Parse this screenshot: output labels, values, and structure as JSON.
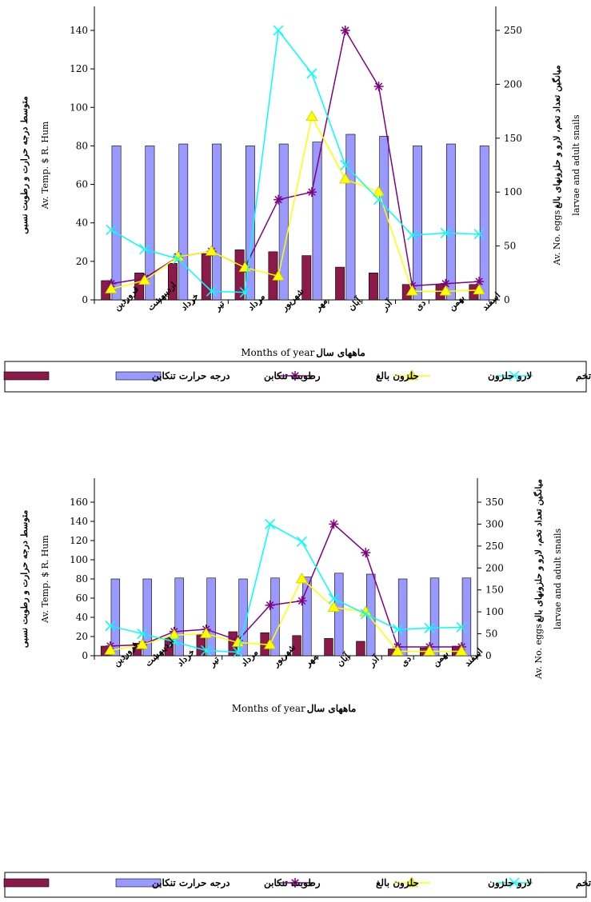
{
  "chart_data": [
    {
      "type": "bar",
      "categories": [
        "فروردین",
        "اردیبهشت",
        "خرداد",
        "تیر",
        "مرداد",
        "شهریور",
        "مهر",
        "آبان",
        "آذر",
        "دی",
        "بهمن",
        "اسفند"
      ],
      "ylabel_left_fa": "متوسط درجه حرارت و رطوبت نسبی",
      "ylabel_left_en": "Av. Temp. $ R. Hum",
      "ylabel_right_fa": "میانگین تعداد تخم، لارو و حلزونهای بالغ",
      "ylabel_right_en_1": "Av. No. eggs",
      "ylabel_right_en_2": "larvae and adult snails",
      "xlabel_en": "Months of year",
      "xlabel_fa": "ماههای سال",
      "ylim_left": [
        0,
        140
      ],
      "yticks_left": [
        0,
        20,
        40,
        60,
        80,
        100,
        120,
        140
      ],
      "ylim_right": [
        0,
        250
      ],
      "yticks_right": [
        0,
        50,
        100,
        150,
        200,
        250
      ],
      "grid": false,
      "legend_position": "bottom",
      "series": [
        {
          "name": "درجه حرارت تنکابن",
          "kind": "bar",
          "axis": "left",
          "color": "#8b1a4a",
          "values": [
            10,
            14,
            19,
            24,
            26,
            25,
            23,
            17,
            14,
            8,
            8,
            8
          ]
        },
        {
          "name": "رطوبت تنکابن",
          "kind": "bar",
          "axis": "left",
          "color": "#9999ff",
          "values": [
            80,
            80,
            81,
            81,
            80,
            81,
            82,
            86,
            85,
            80,
            81,
            80
          ]
        },
        {
          "name": "حلزون بالغ",
          "kind": "line",
          "axis": "right",
          "color": "#800080",
          "marker": "star",
          "values": [
            15,
            20,
            40,
            45,
            30,
            93,
            100,
            250,
            198,
            13,
            15,
            17
          ]
        },
        {
          "name": "لارو حلزون",
          "kind": "line",
          "axis": "right",
          "color": "#ffff00",
          "marker": "triangle",
          "values": [
            10,
            18,
            40,
            45,
            30,
            22,
            170,
            112,
            100,
            8,
            8,
            9
          ]
        },
        {
          "name": "تخم",
          "kind": "line",
          "axis": "right",
          "color": "#00ffff",
          "marker": "x",
          "values": [
            65,
            47,
            38,
            8,
            7,
            250,
            210,
            125,
            93,
            60,
            62,
            61
          ]
        }
      ]
    },
    {
      "type": "bar",
      "categories": [
        "فروردین",
        "اردیبهشت",
        "خرداد",
        "تیر",
        "مرداد",
        "شهریور",
        "مهر",
        "آبان",
        "آذر",
        "دی",
        "بهمن",
        "اسفند"
      ],
      "ylabel_left_fa": "متوسط درجه حرارت و رطوبت نسبی",
      "ylabel_left_en": "Av. Temp. $ R. Hum",
      "ylabel_right_fa": "میانگین تعداد تخم، لارو و حلزونهای بالغ",
      "ylabel_right_en_1": "Av. No. eggs",
      "ylabel_right_en_2": "larvae and adult snails",
      "xlabel_en": "Months of year",
      "xlabel_fa": "ماههای سال",
      "ylim_left": [
        0,
        160
      ],
      "yticks_left": [
        0,
        20,
        40,
        60,
        80,
        100,
        120,
        140,
        160
      ],
      "ylim_right": [
        0,
        350
      ],
      "yticks_right": [
        0,
        50,
        100,
        150,
        200,
        250,
        300,
        350
      ],
      "grid": false,
      "legend_position": "bottom",
      "series": [
        {
          "name": "درجه حرارت تنکابن",
          "kind": "bar",
          "axis": "left",
          "color": "#8b1a4a",
          "values": [
            10,
            13,
            19,
            22,
            25,
            24,
            21,
            18,
            15,
            7,
            8,
            10
          ]
        },
        {
          "name": "رطوبت تنکابن",
          "kind": "bar",
          "axis": "left",
          "color": "#9999ff",
          "values": [
            80,
            80,
            81,
            81,
            80,
            81,
            82,
            86,
            85,
            80,
            81,
            81
          ]
        },
        {
          "name": "حلزون بالغ",
          "kind": "line",
          "axis": "right",
          "color": "#800080",
          "marker": "star",
          "values": [
            22,
            25,
            55,
            60,
            35,
            115,
            125,
            300,
            235,
            20,
            20,
            20
          ]
        },
        {
          "name": "لارو حلزون",
          "kind": "line",
          "axis": "right",
          "color": "#ffff00",
          "marker": "triangle",
          "values": [
            12,
            25,
            47,
            50,
            30,
            25,
            175,
            110,
            100,
            10,
            10,
            10
          ]
        },
        {
          "name": "تخم",
          "kind": "line",
          "axis": "right",
          "color": "#00ffff",
          "marker": "x",
          "values": [
            68,
            50,
            32,
            12,
            8,
            300,
            260,
            130,
            95,
            60,
            63,
            65
          ]
        }
      ]
    }
  ]
}
